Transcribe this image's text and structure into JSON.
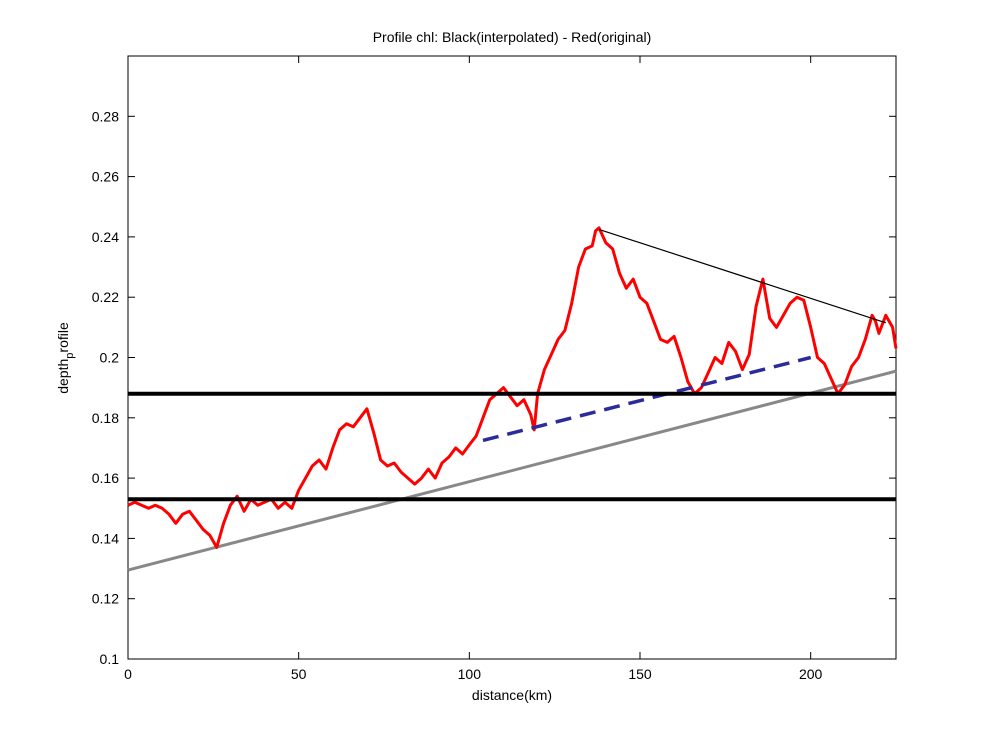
{
  "chart_data": {
    "type": "line",
    "title": "Profile chl: Black(interpolated) - Red(original)",
    "xlabel": "distance(km)",
    "ylabel_main": "depth",
    "ylabel_sub": "p",
    "ylabel_tail": "rofile",
    "xlim": [
      0,
      225
    ],
    "ylim": [
      0.1,
      0.3
    ],
    "xticks": [
      0,
      50,
      100,
      150,
      200
    ],
    "yticks": [
      0.1,
      0.12,
      0.14,
      0.16,
      0.18,
      0.2,
      0.22,
      0.24,
      0.26,
      0.28
    ],
    "xtick_labels": [
      "0",
      "50",
      "100",
      "150",
      "200"
    ],
    "ytick_labels": [
      "0.1",
      "0.12",
      "0.14",
      "0.16",
      "0.18",
      "0.2",
      "0.22",
      "0.24",
      "0.26",
      "0.28"
    ],
    "grid": false,
    "series": [
      {
        "kind": "original",
        "color": "#ff0000",
        "style": "solid",
        "x": [
          0,
          2,
          4,
          6,
          8,
          10,
          12,
          14,
          16,
          18,
          20,
          22,
          24,
          26,
          28,
          30,
          32,
          34,
          36,
          38,
          40,
          42,
          44,
          46,
          48,
          50,
          52,
          54,
          56,
          58,
          60,
          62,
          64,
          66,
          68,
          70,
          72,
          74,
          76,
          78,
          80,
          82,
          84,
          86,
          88,
          90,
          92,
          94,
          96,
          98,
          100,
          102,
          104,
          106,
          108,
          110,
          112,
          114,
          116,
          118,
          119,
          120,
          122,
          124,
          126,
          128,
          130,
          132,
          134,
          136,
          137,
          138,
          140,
          142,
          144,
          146,
          148,
          150,
          152,
          154,
          156,
          158,
          160,
          162,
          164,
          166,
          168,
          170,
          172,
          174,
          176,
          178,
          180,
          182,
          184,
          186,
          188,
          190,
          192,
          194,
          196,
          198,
          200,
          202,
          204,
          206,
          208,
          210,
          212,
          214,
          216,
          218,
          219,
          220,
          222,
          224,
          225
        ],
        "y": [
          0.151,
          0.152,
          0.151,
          0.15,
          0.151,
          0.15,
          0.148,
          0.145,
          0.148,
          0.149,
          0.146,
          0.143,
          0.141,
          0.137,
          0.145,
          0.151,
          0.154,
          0.149,
          0.153,
          0.151,
          0.152,
          0.153,
          0.15,
          0.152,
          0.15,
          0.156,
          0.16,
          0.164,
          0.166,
          0.163,
          0.17,
          0.176,
          0.178,
          0.177,
          0.18,
          0.183,
          0.175,
          0.166,
          0.164,
          0.165,
          0.162,
          0.16,
          0.158,
          0.16,
          0.163,
          0.16,
          0.165,
          0.167,
          0.17,
          0.168,
          0.171,
          0.174,
          0.18,
          0.186,
          0.188,
          0.19,
          0.187,
          0.184,
          0.186,
          0.181,
          0.176,
          0.188,
          0.196,
          0.201,
          0.206,
          0.209,
          0.218,
          0.23,
          0.236,
          0.237,
          0.242,
          0.243,
          0.238,
          0.236,
          0.228,
          0.223,
          0.226,
          0.22,
          0.218,
          0.212,
          0.206,
          0.205,
          0.207,
          0.2,
          0.192,
          0.188,
          0.19,
          0.195,
          0.2,
          0.198,
          0.205,
          0.202,
          0.196,
          0.201,
          0.217,
          0.226,
          0.213,
          0.21,
          0.214,
          0.218,
          0.22,
          0.219,
          0.21,
          0.2,
          0.198,
          0.193,
          0.188,
          0.191,
          0.197,
          0.2,
          0.206,
          0.214,
          0.212,
          0.208,
          0.214,
          0.21,
          0.203
        ]
      },
      {
        "kind": "trend",
        "color": "#888888",
        "style": "solid",
        "x": [
          0,
          225
        ],
        "y": [
          0.1295,
          0.1955
        ]
      },
      {
        "kind": "upper-fit",
        "color": "#000000",
        "style": "solid-thin",
        "x": [
          138,
          222
        ],
        "y": [
          0.2425,
          0.2115
        ]
      },
      {
        "kind": "lower-fit",
        "color": "#2b2b9a",
        "style": "dashed",
        "x": [
          104,
          200
        ],
        "y": [
          0.1725,
          0.2
        ]
      },
      {
        "kind": "hline",
        "color": "#000000",
        "style": "thick",
        "x": [
          0,
          225
        ],
        "y": [
          0.188,
          0.188
        ]
      },
      {
        "kind": "hline",
        "color": "#000000",
        "style": "thick",
        "x": [
          0,
          225
        ],
        "y": [
          0.153,
          0.153
        ]
      }
    ]
  }
}
